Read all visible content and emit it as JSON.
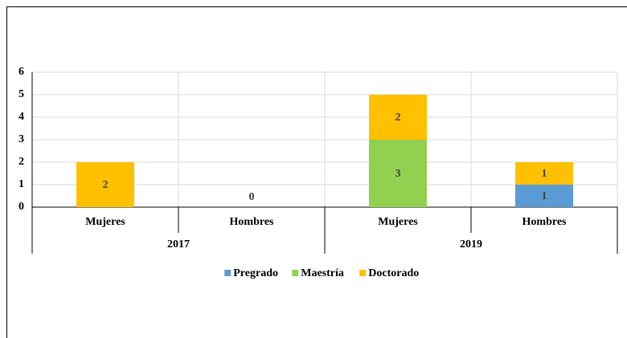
{
  "chart_data": {
    "type": "stacked_bar",
    "groups": [
      {
        "name": "2017",
        "categories": [
          "Mujeres",
          "Hombres"
        ]
      },
      {
        "name": "2019",
        "categories": [
          "Mujeres",
          "Hombres"
        ]
      }
    ],
    "series": [
      {
        "name": "Pregrado",
        "color": "#5b9bd5",
        "values": [
          null,
          null,
          null,
          1
        ]
      },
      {
        "name": "Maestría",
        "color": "#92d050",
        "values": [
          null,
          null,
          3,
          null
        ]
      },
      {
        "name": "Doctorado",
        "color": "#ffc000",
        "values": [
          2,
          0,
          2,
          1
        ]
      }
    ],
    "ylim": [
      0,
      6
    ],
    "yticks": [
      0,
      1,
      2,
      3,
      4,
      5,
      6
    ],
    "grid": true,
    "legend": "bottom"
  }
}
